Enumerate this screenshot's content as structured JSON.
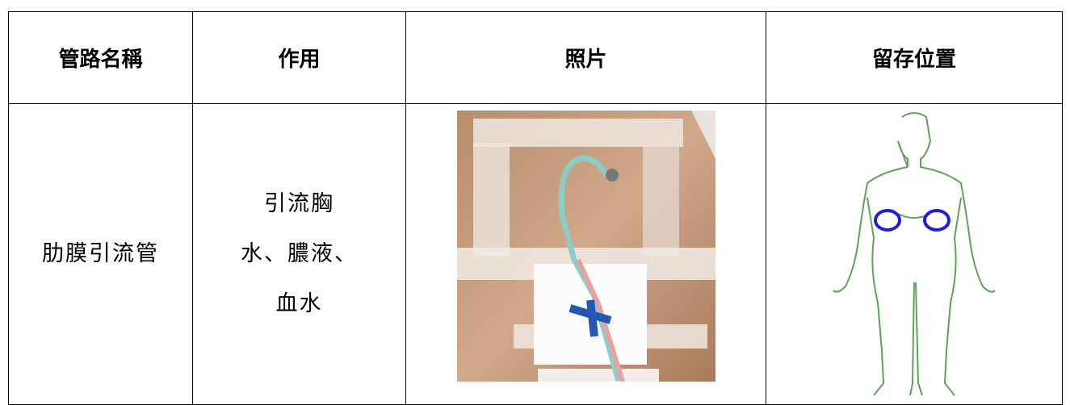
{
  "table": {
    "header": [
      "管路名稱",
      "作用",
      "照片",
      "留存位置"
    ],
    "rows": [
      [
        {
          "lines": [
            "肋膜引流管"
          ]
        },
        {
          "lines": [
            "引流胸",
            "水、膿液、",
            "血水"
          ]
        }
      ]
    ]
  }
}
